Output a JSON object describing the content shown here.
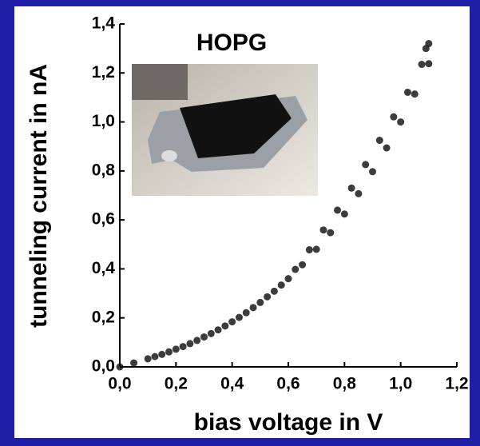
{
  "chart_data": {
    "type": "scatter",
    "annotation": "HOPG",
    "xlabel": "bias voltage in V",
    "ylabel": "tunneling current in nA",
    "color": "#1a1a1a",
    "x": [
      0.0,
      0.05,
      0.1,
      0.125,
      0.15,
      0.175,
      0.2,
      0.225,
      0.25,
      0.275,
      0.3,
      0.325,
      0.35,
      0.375,
      0.4,
      0.425,
      0.45,
      0.475,
      0.5,
      0.525,
      0.55,
      0.575,
      0.6,
      0.65,
      0.7,
      0.75,
      0.8,
      0.85,
      0.9,
      0.95,
      1.0,
      1.05,
      1.1,
      0.625,
      0.675,
      0.725,
      0.775,
      0.825,
      0.875,
      0.925,
      0.975,
      1.025,
      1.075,
      1.09,
      1.1
    ],
    "values": [
      0.0,
      0.016,
      0.033,
      0.042,
      0.051,
      0.061,
      0.072,
      0.083,
      0.095,
      0.108,
      0.122,
      0.136,
      0.151,
      0.167,
      0.184,
      0.202,
      0.221,
      0.242,
      0.263,
      0.286,
      0.309,
      0.334,
      0.36,
      0.417,
      0.48,
      0.548,
      0.624,
      0.707,
      0.797,
      0.894,
      1.0,
      1.114,
      1.238,
      0.398,
      0.478,
      0.559,
      0.64,
      0.73,
      0.826,
      0.925,
      1.021,
      1.121,
      1.235,
      1.3,
      1.32
    ],
    "xlim": [
      0,
      1.2
    ],
    "ylim": [
      0,
      1.4
    ],
    "xticks": [
      {
        "value": 0,
        "label": "0,0"
      },
      {
        "value": 0.2,
        "label": "0,2"
      },
      {
        "value": 0.4,
        "label": "0,4"
      },
      {
        "value": 0.6,
        "label": "0,6"
      },
      {
        "value": 0.8,
        "label": "0,8"
      },
      {
        "value": 1.0,
        "label": "1,0"
      },
      {
        "value": 1.2,
        "label": "1,2"
      }
    ],
    "yticks": [
      {
        "value": 0,
        "label": "0,0"
      },
      {
        "value": 0.2,
        "label": "0,2"
      },
      {
        "value": 0.4,
        "label": "0,4"
      },
      {
        "value": 0.6,
        "label": "0,6"
      },
      {
        "value": 0.8,
        "label": "0,8"
      },
      {
        "value": 1.0,
        "label": "1,0"
      },
      {
        "value": 1.2,
        "label": "1,2"
      },
      {
        "value": 1.4,
        "label": "1,4"
      }
    ]
  }
}
